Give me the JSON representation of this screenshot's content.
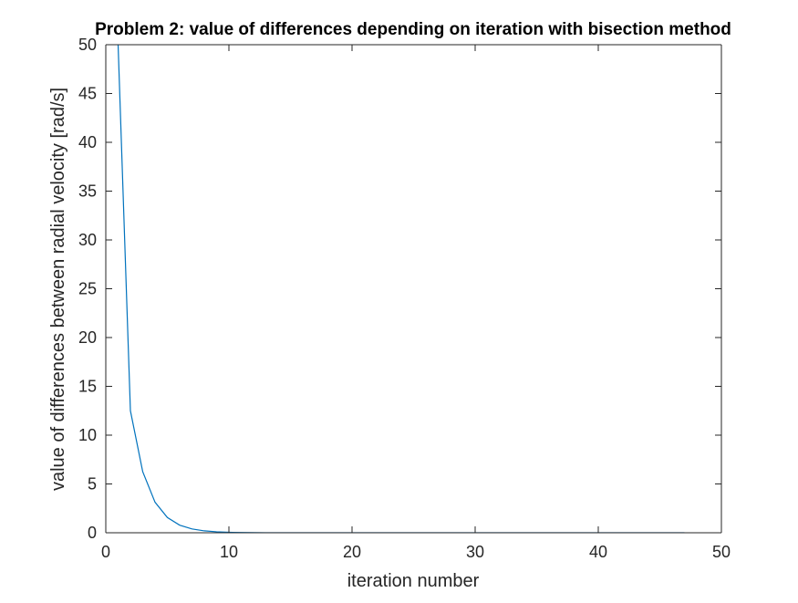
{
  "chart_data": {
    "type": "line",
    "title": "Problem 2: value of differences depending on iteration with bisection method",
    "xlabel": "iteration number",
    "ylabel": "value of differences between radial velocity [rad/s]",
    "xlim": [
      0,
      50
    ],
    "ylim": [
      0,
      50
    ],
    "xticks": [
      0,
      10,
      20,
      30,
      40,
      50
    ],
    "yticks": [
      0,
      5,
      10,
      15,
      20,
      25,
      30,
      35,
      40,
      45,
      50
    ],
    "grid": false,
    "legend": "none",
    "series": [
      {
        "color": "#0072BD",
        "x": [
          1,
          2,
          3,
          4,
          5,
          6,
          7,
          8,
          9,
          10,
          11,
          12,
          13,
          14,
          15,
          16,
          17,
          18,
          19,
          20,
          21,
          22,
          23,
          24,
          25,
          26,
          27,
          28,
          29,
          30,
          31,
          32,
          33,
          34,
          35,
          36,
          37,
          38,
          39,
          40,
          41,
          42,
          43,
          44,
          45,
          46,
          47
        ],
        "y": [
          50,
          12.5,
          6.25,
          3.125,
          1.5625,
          0.78125,
          0.390625,
          0.1953125,
          0.09765625,
          0.048828125,
          0.0244140625,
          0.01220703125,
          0.006103515625,
          0.0030517578125,
          0.00152587890625,
          0.000762939453125,
          0.0003814697265625,
          0.00019073486328125,
          9.5367431640625e-05,
          4.76837158203125e-05,
          0,
          0,
          0,
          0,
          0,
          0,
          0,
          0,
          0,
          0,
          0,
          0,
          0,
          0,
          0,
          0,
          0,
          0,
          0,
          0,
          0,
          0,
          0,
          0,
          0,
          0,
          0
        ]
      }
    ]
  }
}
